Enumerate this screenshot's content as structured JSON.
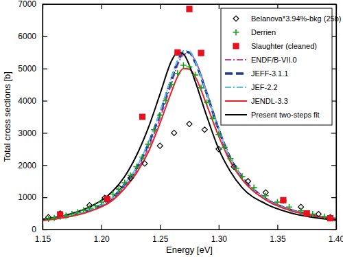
{
  "chart_data": {
    "type": "line",
    "x_label": "Energy [eV]",
    "y_label": "Total cross sections [b]",
    "xlim": [
      1.15,
      1.4
    ],
    "xticks": [
      1.15,
      {
        "value": 1.2,
        "label": "1.20"
      },
      1.25,
      {
        "value": 1.3,
        "label": "1.30"
      },
      1.35,
      {
        "value": 1.4,
        "label": "1.40"
      }
    ],
    "ylim": [
      0,
      7000
    ],
    "yticks": [
      0,
      1000,
      2000,
      3000,
      4000,
      5000,
      6000,
      7000
    ],
    "grid": false,
    "legend": "upper right",
    "series": [
      {
        "name": "Belanova*3.94%-bkg (25b)",
        "type": "scatter",
        "marker": "diamond",
        "color": "#000000",
        "x": [
          1.155,
          1.165,
          1.19,
          1.203,
          1.215,
          1.225,
          1.237,
          1.25,
          1.262,
          1.275,
          1.288,
          1.3,
          1.313,
          1.325,
          1.34,
          1.355,
          1.37,
          1.385,
          1.395
        ],
        "values": [
          380,
          500,
          750,
          980,
          1300,
          1600,
          2050,
          2600,
          3000,
          3280,
          3100,
          2500,
          1950,
          1500,
          1150,
          900,
          700,
          480,
          380
        ]
      },
      {
        "name": "Derrien",
        "type": "scatter",
        "marker": "plus",
        "color": "#1e9e1e",
        "x": [
          1.155,
          1.16,
          1.165,
          1.17,
          1.175,
          1.18,
          1.185,
          1.19,
          1.195,
          1.2,
          1.205,
          1.21,
          1.215,
          1.22,
          1.225,
          1.23,
          1.235,
          1.24,
          1.245,
          1.25,
          1.255,
          1.26,
          1.265,
          1.27,
          1.275,
          1.28,
          1.285,
          1.29,
          1.295,
          1.3,
          1.305,
          1.31,
          1.315,
          1.32,
          1.33,
          1.34,
          1.35,
          1.36,
          1.37,
          1.38,
          1.39,
          1.395
        ],
        "values": [
          330,
          360,
          400,
          430,
          480,
          540,
          600,
          660,
          740,
          850,
          960,
          1100,
          1250,
          1450,
          1680,
          1950,
          2250,
          2650,
          3100,
          3550,
          4000,
          4500,
          4850,
          5100,
          5050,
          4800,
          4400,
          3950,
          3450,
          2950,
          2550,
          2200,
          1900,
          1650,
          1300,
          1050,
          850,
          700,
          580,
          480,
          400,
          370
        ]
      },
      {
        "name": "Slaughter (cleaned)",
        "type": "scatter",
        "marker": "square",
        "color": "#e8101e",
        "x": [
          1.165,
          1.205,
          1.235,
          1.265,
          1.275,
          1.285,
          1.355,
          1.375,
          1.395
        ],
        "values": [
          470,
          950,
          3500,
          5500,
          6850,
          5480,
          910,
          500,
          350
        ]
      },
      {
        "name": "ENDF/B-VII.0",
        "type": "line",
        "line_style": "dashdot",
        "color": "#c8459a",
        "x": [
          1.15,
          1.17,
          1.19,
          1.21,
          1.22,
          1.23,
          1.24,
          1.25,
          1.26,
          1.265,
          1.27,
          1.275,
          1.28,
          1.29,
          1.3,
          1.31,
          1.32,
          1.34,
          1.36,
          1.38,
          1.4
        ],
        "values": [
          290,
          390,
          580,
          960,
          1330,
          1820,
          2520,
          3450,
          4550,
          5100,
          5430,
          5480,
          5250,
          4250,
          3150,
          2250,
          1650,
          980,
          640,
          450,
          330
        ]
      },
      {
        "name": "JEFF-3.1.1",
        "type": "line",
        "line_style": "dashed",
        "color": "#1f3c99",
        "x": [
          1.15,
          1.17,
          1.19,
          1.21,
          1.22,
          1.23,
          1.24,
          1.25,
          1.26,
          1.265,
          1.27,
          1.275,
          1.28,
          1.29,
          1.3,
          1.31,
          1.32,
          1.34,
          1.36,
          1.38,
          1.4
        ],
        "values": [
          300,
          400,
          600,
          1000,
          1400,
          1900,
          2650,
          3600,
          4700,
          5200,
          5520,
          5500,
          5200,
          4200,
          3100,
          2200,
          1600,
          950,
          620,
          440,
          330
        ]
      },
      {
        "name": "JEF-2.2",
        "type": "line",
        "line_style": "dashdot",
        "color": "#5cc4d8",
        "x": [
          1.15,
          1.17,
          1.19,
          1.21,
          1.22,
          1.23,
          1.24,
          1.25,
          1.26,
          1.265,
          1.27,
          1.275,
          1.28,
          1.29,
          1.3,
          1.31,
          1.32,
          1.34,
          1.36,
          1.38,
          1.4
        ],
        "values": [
          300,
          405,
          610,
          1010,
          1420,
          1930,
          2700,
          3650,
          4750,
          5250,
          5550,
          5530,
          5220,
          4200,
          3100,
          2200,
          1600,
          950,
          620,
          440,
          330
        ]
      },
      {
        "name": "JENDL-3.3",
        "type": "line",
        "line_style": "solid",
        "color": "#e8202a",
        "x": [
          1.15,
          1.17,
          1.19,
          1.21,
          1.22,
          1.23,
          1.24,
          1.25,
          1.26,
          1.265,
          1.27,
          1.275,
          1.28,
          1.29,
          1.3,
          1.31,
          1.32,
          1.34,
          1.36,
          1.38,
          1.4
        ],
        "values": [
          280,
          380,
          560,
          920,
          1280,
          1750,
          2400,
          3300,
          4300,
          4750,
          5000,
          4980,
          4750,
          3850,
          2900,
          2100,
          1550,
          920,
          600,
          430,
          320
        ]
      },
      {
        "name": "Present two-steps fit",
        "type": "line",
        "line_style": "solid",
        "color": "#000000",
        "x": [
          1.15,
          1.17,
          1.19,
          1.21,
          1.22,
          1.23,
          1.24,
          1.25,
          1.26,
          1.265,
          1.27,
          1.275,
          1.28,
          1.29,
          1.3,
          1.31,
          1.32,
          1.34,
          1.36,
          1.38,
          1.4
        ],
        "values": [
          320,
          450,
          700,
          1200,
          1650,
          2300,
          3150,
          4200,
          5250,
          5500,
          5450,
          5100,
          4600,
          3500,
          2500,
          1800,
          1300,
          800,
          530,
          380,
          290
        ]
      }
    ]
  }
}
